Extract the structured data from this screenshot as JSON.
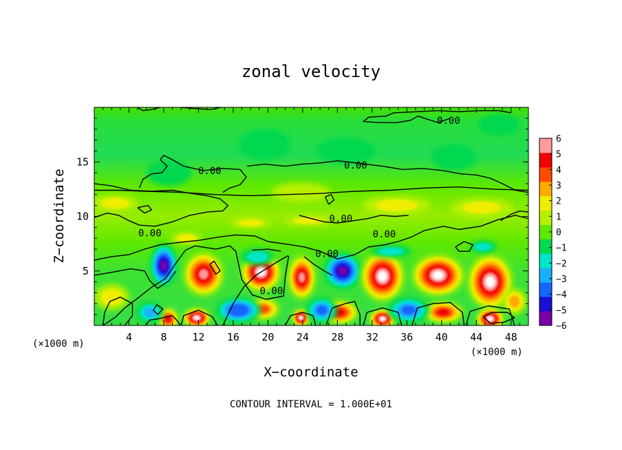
{
  "chart_data": {
    "type": "heatmap",
    "title": "zonal velocity",
    "xlabel": "X−coordinate",
    "ylabel": "Z−coordinate",
    "x_unit_left": "(×1000 m)",
    "x_unit_right": "(×1000 m)",
    "footer": "CONTOUR INTERVAL = 1.000E+01",
    "xlim": [
      0,
      50
    ],
    "ylim": [
      0,
      20
    ],
    "x_ticks": [
      4,
      8,
      12,
      16,
      20,
      24,
      28,
      32,
      36,
      40,
      44,
      48
    ],
    "x_tick_labels": [
      "4",
      "8",
      "12",
      "16",
      "20",
      "24",
      "28",
      "32",
      "36",
      "40",
      "44",
      "48"
    ],
    "y_ticks": [
      5,
      10,
      15
    ],
    "y_tick_labels": [
      "5",
      "10",
      "15"
    ],
    "colorbar": {
      "ticks": [
        6,
        5,
        4,
        3,
        2,
        1,
        0,
        -1,
        -2,
        -3,
        -4,
        -5,
        -6
      ],
      "tick_labels": [
        "6",
        "5",
        "4",
        "3",
        "2",
        "1",
        "0",
        "−1",
        "−2",
        "−3",
        "−4",
        "−5",
        "−6"
      ],
      "range": [
        -6,
        6
      ],
      "colors": [
        "#7a00a8",
        "#1a0fd6",
        "#1565ff",
        "#1ab0ff",
        "#00e6c8",
        "#00d850",
        "#5fe800",
        "#b6f000",
        "#f0ee00",
        "#ffaa00",
        "#ff4a00",
        "#f00000",
        "#ff9a9a"
      ]
    },
    "contour_labels": [
      {
        "text": "0.00",
        "x": 40.8,
        "z": 18.8
      },
      {
        "text": "0.00",
        "x": 13.3,
        "z": 14.2
      },
      {
        "text": "0.00",
        "x": 30.1,
        "z": 14.7
      },
      {
        "text": "0.00",
        "x": 28.4,
        "z": 9.8
      },
      {
        "text": "0.00",
        "x": 6.4,
        "z": 8.5
      },
      {
        "text": "0.00",
        "x": 33.4,
        "z": 8.4
      },
      {
        "text": "0.00",
        "x": 26.8,
        "z": 6.6
      },
      {
        "text": "0.00",
        "x": 20.4,
        "z": 3.2
      }
    ],
    "cells": [
      {
        "x": 8,
        "z": 5.5,
        "rx": 1.6,
        "rz": 2.0,
        "v": -6
      },
      {
        "x": 12.6,
        "z": 4.7,
        "rx": 2.3,
        "rz": 2.0,
        "v": 6
      },
      {
        "x": 19.2,
        "z": 4.9,
        "rx": 2.3,
        "rz": 1.8,
        "v": 6.5
      },
      {
        "x": 23.9,
        "z": 4.4,
        "rx": 1.6,
        "rz": 2.0,
        "v": 5.5
      },
      {
        "x": 28.6,
        "z": 5.0,
        "rx": 2.2,
        "rz": 1.7,
        "v": -6
      },
      {
        "x": 33.2,
        "z": 4.5,
        "rx": 2.5,
        "rz": 2.3,
        "v": 6.5
      },
      {
        "x": 39.6,
        "z": 4.6,
        "rx": 3.0,
        "rz": 1.9,
        "v": 6.5
      },
      {
        "x": 45.6,
        "z": 4.0,
        "rx": 2.6,
        "rz": 2.5,
        "v": 6.5
      },
      {
        "x": 11.8,
        "z": 0.7,
        "rx": 1.6,
        "rz": 0.9,
        "v": 6.5
      },
      {
        "x": 23.8,
        "z": 0.7,
        "rx": 1.0,
        "rz": 0.8,
        "v": 6.5
      },
      {
        "x": 33.2,
        "z": 0.6,
        "rx": 1.5,
        "rz": 0.9,
        "v": 6.5
      },
      {
        "x": 45.6,
        "z": 0.6,
        "rx": 1.6,
        "rz": 1.0,
        "v": 6.5
      },
      {
        "x": 8.5,
        "z": 0.6,
        "rx": 1.2,
        "rz": 1.0,
        "v": 5
      },
      {
        "x": 19.5,
        "z": 1.5,
        "rx": 1.8,
        "rz": 1.0,
        "v": 4
      },
      {
        "x": 28.2,
        "z": 1.2,
        "rx": 2.2,
        "rz": 1.1,
        "v": 4.5
      },
      {
        "x": 40.2,
        "z": 1.2,
        "rx": 2.3,
        "rz": 1.0,
        "v": 4.5
      },
      {
        "x": 16.6,
        "z": 1.4,
        "rx": 2.6,
        "rz": 1.2,
        "v": -4.5
      },
      {
        "x": 26.2,
        "z": 1.4,
        "rx": 1.8,
        "rz": 1.2,
        "v": -4
      },
      {
        "x": 36.2,
        "z": 1.4,
        "rx": 2.4,
        "rz": 1.2,
        "v": -4
      },
      {
        "x": 6.4,
        "z": 1.2,
        "rx": 1.6,
        "rz": 1.0,
        "v": -3
      },
      {
        "x": 2.0,
        "z": 2.6,
        "rx": 2.0,
        "rz": 1.2,
        "v": 2
      },
      {
        "x": 48.4,
        "z": 2.2,
        "rx": 1.4,
        "rz": 1.2,
        "v": 3
      },
      {
        "x": 18.8,
        "z": 6.3,
        "rx": 2.0,
        "rz": 0.8,
        "v": -2
      },
      {
        "x": 34.2,
        "z": 6.8,
        "rx": 2.4,
        "rz": 0.6,
        "v": -2
      },
      {
        "x": 44.8,
        "z": 7.2,
        "rx": 1.6,
        "rz": 0.6,
        "v": -2
      },
      {
        "x": 18.0,
        "z": 9.4,
        "rx": 2.4,
        "rz": 0.5,
        "v": 2
      },
      {
        "x": 24.6,
        "z": 9.6,
        "rx": 2.8,
        "rz": 0.5,
        "v": 2
      },
      {
        "x": 10.6,
        "z": 8.0,
        "rx": 1.8,
        "rz": 0.6,
        "v": 2
      },
      {
        "x": 2.4,
        "z": 11.2,
        "rx": 2.6,
        "rz": 0.8,
        "v": 1.5
      },
      {
        "x": 34.8,
        "z": 11.0,
        "rx": 4.0,
        "rz": 0.9,
        "v": 1.5
      },
      {
        "x": 44.6,
        "z": 10.8,
        "rx": 3.6,
        "rz": 0.9,
        "v": 1.5
      },
      {
        "x": 23.8,
        "z": 12.2,
        "rx": 3.4,
        "rz": 0.9,
        "v": 1
      },
      {
        "x": 8.6,
        "z": 14.0,
        "rx": 2.6,
        "rz": 1.2,
        "v": -1.5
      },
      {
        "x": 29.0,
        "z": 16.0,
        "rx": 3.4,
        "rz": 1.2,
        "v": -1.5
      },
      {
        "x": 41.4,
        "z": 15.4,
        "rx": 2.6,
        "rz": 1.2,
        "v": -1.5
      },
      {
        "x": 19.6,
        "z": 16.6,
        "rx": 3.0,
        "rz": 1.4,
        "v": -1
      },
      {
        "x": 46.6,
        "z": 18.4,
        "rx": 2.4,
        "rz": 1.0,
        "v": -1
      }
    ],
    "zero_contours": [
      [
        [
          1.0,
          0.0
        ],
        [
          2.5,
          0.8
        ],
        [
          3.5,
          1.6
        ],
        [
          5.0,
          2.5
        ],
        [
          6.6,
          3.5
        ],
        [
          8.2,
          4.3
        ],
        [
          9.4,
          5.7
        ],
        [
          10.5,
          6.9
        ],
        [
          11.6,
          7.3
        ],
        [
          14.0,
          7.0
        ],
        [
          15.6,
          7.3
        ],
        [
          16.3,
          6.8
        ],
        [
          17.0,
          4.2
        ],
        [
          18.2,
          2.8
        ],
        [
          19.8,
          2.4
        ],
        [
          21.8,
          2.7
        ],
        [
          22.0,
          4.5
        ],
        [
          22.4,
          6.4
        ]
      ],
      [
        [
          0.0,
          6.0
        ],
        [
          2.0,
          6.3
        ],
        [
          4.0,
          6.5
        ],
        [
          5.8,
          7.0
        ],
        [
          7.6,
          7.4
        ],
        [
          9.6,
          7.6
        ],
        [
          12.0,
          7.8
        ],
        [
          14.3,
          8.1
        ],
        [
          16.3,
          8.3
        ],
        [
          18.5,
          8.2
        ],
        [
          20.0,
          7.7
        ],
        [
          22.6,
          7.4
        ],
        [
          24.2,
          7.2
        ],
        [
          26.0,
          6.8
        ],
        [
          28.0,
          6.1
        ],
        [
          30.0,
          6.5
        ],
        [
          31.6,
          7.2
        ],
        [
          33.5,
          7.4
        ],
        [
          35.0,
          7.7
        ],
        [
          36.5,
          8.1
        ],
        [
          38.0,
          8.7
        ],
        [
          40.2,
          9.1
        ],
        [
          42.0,
          8.8
        ],
        [
          44.5,
          9.1
        ],
        [
          46.5,
          9.7
        ],
        [
          48.5,
          10.1
        ],
        [
          50.0,
          9.8
        ]
      ],
      [
        [
          0.0,
          4.6
        ],
        [
          2.2,
          4.9
        ],
        [
          4.2,
          5.2
        ],
        [
          5.8,
          5.0
        ],
        [
          6.4,
          4.1
        ],
        [
          7.3,
          3.4
        ],
        [
          8.6,
          4.1
        ],
        [
          9.4,
          5.0
        ]
      ],
      [
        [
          0.0,
          9.9
        ],
        [
          1.5,
          10.3
        ],
        [
          2.8,
          10.1
        ],
        [
          4.0,
          9.6
        ],
        [
          5.2,
          9.2
        ],
        [
          7.0,
          9.1
        ],
        [
          9.0,
          9.5
        ],
        [
          11.0,
          10.1
        ],
        [
          13.0,
          10.4
        ],
        [
          14.8,
          10.5
        ],
        [
          15.4,
          11.0
        ],
        [
          14.5,
          11.6
        ],
        [
          13.0,
          11.9
        ],
        [
          11.2,
          12.1
        ],
        [
          9.0,
          12.4
        ],
        [
          6.6,
          12.3
        ],
        [
          4.2,
          12.4
        ],
        [
          2.0,
          12.8
        ],
        [
          0.0,
          13.0
        ]
      ],
      [
        [
          14.8,
          12.2
        ],
        [
          15.6,
          12.6
        ],
        [
          16.8,
          12.9
        ],
        [
          17.5,
          13.6
        ],
        [
          16.8,
          14.3
        ],
        [
          14.8,
          14.4
        ],
        [
          12.6,
          14.2
        ],
        [
          10.3,
          14.6
        ],
        [
          9.0,
          15.2
        ],
        [
          8.0,
          15.6
        ],
        [
          7.6,
          15.2
        ],
        [
          8.4,
          14.6
        ],
        [
          7.8,
          14.0
        ],
        [
          6.6,
          13.9
        ],
        [
          5.6,
          13.4
        ],
        [
          5.2,
          12.6
        ]
      ],
      [
        [
          17.6,
          14.6
        ],
        [
          19.6,
          14.8
        ],
        [
          22.0,
          14.6
        ],
        [
          24.0,
          14.8
        ],
        [
          26.0,
          14.9
        ],
        [
          28.0,
          15.1
        ],
        [
          29.2,
          15.0
        ],
        [
          31.2,
          14.8
        ],
        [
          33.2,
          14.6
        ],
        [
          35.5,
          14.3
        ],
        [
          37.8,
          14.4
        ],
        [
          40.2,
          14.2
        ],
        [
          42.2,
          13.9
        ],
        [
          44.0,
          13.8
        ],
        [
          45.6,
          13.5
        ],
        [
          47.0,
          13.0
        ],
        [
          48.5,
          12.4
        ],
        [
          50.0,
          12.2
        ]
      ],
      [
        [
          0.0,
          12.4
        ],
        [
          3.0,
          12.4
        ],
        [
          6.0,
          12.3
        ],
        [
          10.0,
          12.2
        ],
        [
          14.0,
          12.0
        ],
        [
          18.0,
          11.9
        ],
        [
          22.0,
          12.0
        ],
        [
          26.0,
          12.1
        ],
        [
          30.0,
          12.3
        ],
        [
          34.0,
          12.4
        ],
        [
          38.0,
          12.6
        ],
        [
          42.0,
          12.7
        ],
        [
          46.0,
          12.5
        ],
        [
          50.0,
          12.4
        ]
      ],
      [
        [
          41.0,
          19.0
        ],
        [
          39.6,
          18.6
        ],
        [
          38.4,
          18.9
        ],
        [
          37.3,
          19.2
        ],
        [
          36.4,
          18.8
        ],
        [
          34.8,
          18.6
        ],
        [
          32.8,
          18.6
        ],
        [
          31.0,
          18.7
        ],
        [
          31.6,
          19.1
        ],
        [
          33.6,
          19.2
        ],
        [
          34.5,
          19.5
        ],
        [
          37.2,
          19.6
        ],
        [
          39.5,
          19.7
        ],
        [
          42.0,
          19.6
        ],
        [
          44.5,
          19.7
        ],
        [
          46.6,
          19.7
        ],
        [
          48.0,
          19.5
        ]
      ],
      [
        [
          5.0,
          20.0
        ],
        [
          5.6,
          19.7
        ],
        [
          6.6,
          19.8
        ],
        [
          7.6,
          20.0
        ]
      ],
      [
        [
          10.0,
          20.0
        ],
        [
          11.4,
          19.9
        ],
        [
          13.4,
          19.8
        ],
        [
          14.6,
          20.0
        ]
      ],
      [
        [
          23.6,
          10.1
        ],
        [
          25.0,
          9.8
        ],
        [
          26.5,
          9.5
        ],
        [
          28.0,
          9.4
        ],
        [
          29.8,
          9.6
        ],
        [
          31.5,
          9.8
        ],
        [
          33.0,
          10.1
        ],
        [
          34.6,
          10.0
        ],
        [
          36.2,
          10.1
        ]
      ],
      [
        [
          46.8,
          9.6
        ],
        [
          48.0,
          10.2
        ],
        [
          49.0,
          10.5
        ],
        [
          50.0,
          10.4
        ]
      ],
      [
        [
          27.0,
          11.1
        ],
        [
          27.6,
          11.5
        ],
        [
          27.3,
          12.0
        ],
        [
          26.6,
          11.8
        ],
        [
          27.0,
          11.1
        ]
      ],
      [
        [
          5.0,
          10.8
        ],
        [
          6.2,
          11.0
        ],
        [
          6.6,
          10.6
        ],
        [
          5.8,
          10.3
        ],
        [
          5.0,
          10.8
        ]
      ],
      [
        [
          41.6,
          7.2
        ],
        [
          42.6,
          7.7
        ],
        [
          43.6,
          7.4
        ],
        [
          43.2,
          6.8
        ],
        [
          42.0,
          6.8
        ],
        [
          41.6,
          7.2
        ]
      ],
      [
        [
          13.3,
          5.6
        ],
        [
          13.8,
          5.9
        ],
        [
          14.5,
          5.0
        ],
        [
          14.0,
          4.7
        ],
        [
          13.3,
          5.6
        ]
      ],
      [
        [
          24.2,
          6.3
        ],
        [
          25.3,
          5.6
        ],
        [
          26.5,
          5.0
        ],
        [
          27.4,
          4.6
        ]
      ],
      [
        [
          44.8,
          0.8
        ],
        [
          45.6,
          0.2
        ],
        [
          47.2,
          0.3
        ],
        [
          48.4,
          0.7
        ],
        [
          47.6,
          1.2
        ],
        [
          45.8,
          1.2
        ],
        [
          44.8,
          0.8
        ]
      ],
      [
        [
          6.8,
          1.4
        ],
        [
          7.3,
          1.0
        ],
        [
          7.9,
          1.5
        ],
        [
          7.2,
          1.9
        ],
        [
          6.8,
          1.4
        ]
      ],
      [
        [
          5.9,
          0.0
        ],
        [
          6.4,
          0.5
        ],
        [
          7.3,
          0.6
        ],
        [
          9.0,
          0.9
        ],
        [
          9.6,
          0.4
        ],
        [
          9.9,
          0.0
        ]
      ],
      [
        [
          14.2,
          0.0
        ],
        [
          13.6,
          0.8
        ],
        [
          12.0,
          1.4
        ],
        [
          10.3,
          0.9
        ],
        [
          10.0,
          0.0
        ]
      ],
      [
        [
          22.0,
          0.0
        ],
        [
          22.6,
          0.9
        ],
        [
          24.0,
          1.2
        ],
        [
          25.2,
          0.9
        ],
        [
          25.5,
          0.0
        ]
      ],
      [
        [
          31.0,
          0.0
        ],
        [
          31.4,
          1.2
        ],
        [
          33.2,
          1.6
        ],
        [
          35.0,
          1.2
        ],
        [
          35.4,
          0.0
        ]
      ],
      [
        [
          42.8,
          0.0
        ],
        [
          43.3,
          1.3
        ],
        [
          45.4,
          1.8
        ],
        [
          47.8,
          1.5
        ],
        [
          48.4,
          0.0
        ]
      ],
      [
        [
          3.5,
          0.0
        ],
        [
          4.4,
          0.9
        ],
        [
          4.4,
          2.0
        ],
        [
          3.0,
          2.6
        ],
        [
          1.8,
          2.2
        ],
        [
          1.2,
          1.2
        ],
        [
          1.0,
          0.0
        ]
      ],
      [
        [
          26.7,
          0.0
        ],
        [
          27.4,
          1.6
        ],
        [
          28.9,
          2.0
        ],
        [
          30.0,
          2.2
        ],
        [
          30.6,
          1.0
        ],
        [
          30.6,
          0.0
        ]
      ],
      [
        [
          36.6,
          0.0
        ],
        [
          37.2,
          1.6
        ],
        [
          39.0,
          2.0
        ],
        [
          41.0,
          2.1
        ],
        [
          42.4,
          1.2
        ],
        [
          42.6,
          0.0
        ]
      ],
      [
        [
          14.8,
          0.0
        ],
        [
          16.0,
          2.0
        ],
        [
          17.2,
          3.5
        ],
        [
          18.6,
          4.6
        ],
        [
          21.0,
          5.8
        ],
        [
          22.3,
          6.4
        ]
      ],
      [
        [
          18.2,
          6.9
        ],
        [
          20.0,
          7.0
        ],
        [
          21.5,
          6.8
        ]
      ]
    ]
  }
}
